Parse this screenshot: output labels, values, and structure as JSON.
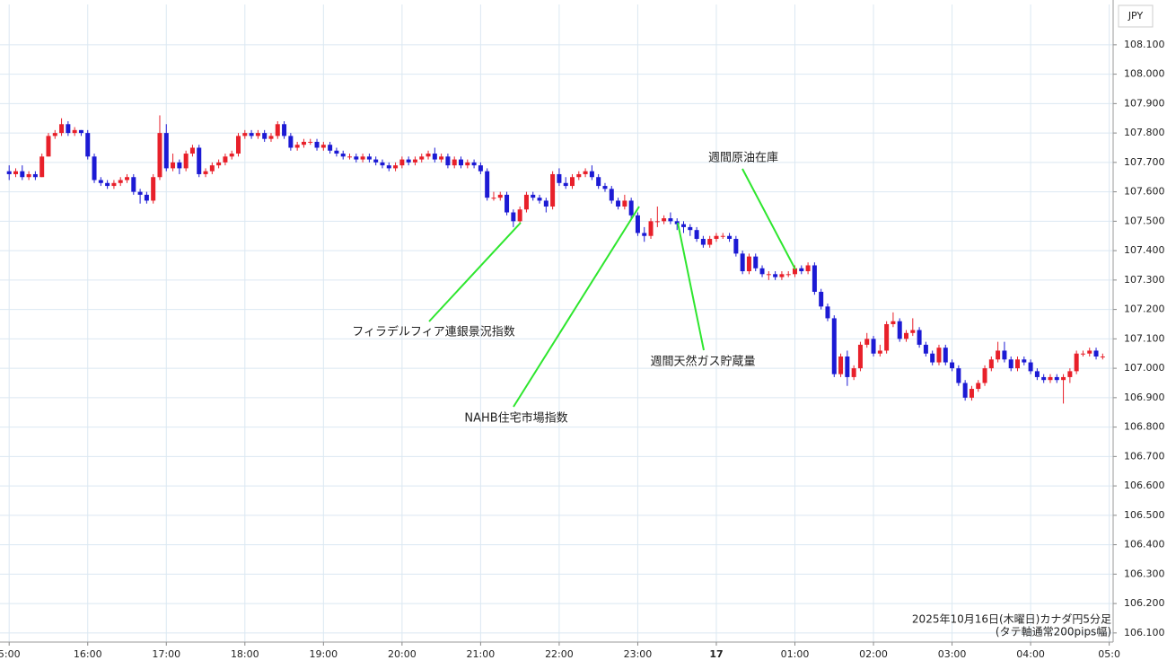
{
  "chart_data": {
    "type": "candlestick",
    "currency": "JPY",
    "note": [
      "2025年10月16日(木曜日)カナダ円5分足",
      "(タテ軸通常200pips幅)"
    ],
    "annotations": [
      "フィラデルフィア連銀景況指数",
      "NAHB住宅市場指数",
      "週間天然ガス貯蔵量",
      "週間原油在庫"
    ],
    "up_color": "#e8202a",
    "down_color": "#1c1ad4",
    "grid": true,
    "xlim": [
      -7,
      843
    ],
    "xticks": [
      {
        "value": 0,
        "label": "5:00"
      },
      {
        "value": 60,
        "label": "16:00"
      },
      {
        "value": 120,
        "label": "17:00"
      },
      {
        "value": 180,
        "label": "18:00"
      },
      {
        "value": 240,
        "label": "19:00"
      },
      {
        "value": 300,
        "label": "20:00"
      },
      {
        "value": 360,
        "label": "21:00"
      },
      {
        "value": 420,
        "label": "22:00"
      },
      {
        "value": 480,
        "label": "23:00"
      },
      {
        "value": 540,
        "label": "17"
      },
      {
        "value": 600,
        "label": "01:00"
      },
      {
        "value": 660,
        "label": "02:00"
      },
      {
        "value": 720,
        "label": "03:00"
      },
      {
        "value": 780,
        "label": "04:00"
      },
      {
        "value": 840,
        "label": "05:0"
      }
    ],
    "ylim": [
      106.069,
      108.237
    ],
    "yticks": [
      {
        "value": 106.1,
        "label": "106.100"
      },
      {
        "value": 106.2,
        "label": "106.200"
      },
      {
        "value": 106.3,
        "label": "106.300"
      },
      {
        "value": 106.4,
        "label": "106.400"
      },
      {
        "value": 106.5,
        "label": "106.500"
      },
      {
        "value": 106.6,
        "label": "106.600"
      },
      {
        "value": 106.7,
        "label": "106.700"
      },
      {
        "value": 106.8,
        "label": "106.800"
      },
      {
        "value": 106.9,
        "label": "106.900"
      },
      {
        "value": 107.0,
        "label": "107.000"
      },
      {
        "value": 107.1,
        "label": "107.100"
      },
      {
        "value": 107.2,
        "label": "107.200"
      },
      {
        "value": 107.3,
        "label": "107.300"
      },
      {
        "value": 107.4,
        "label": "107.400"
      },
      {
        "value": 107.5,
        "label": "107.500"
      },
      {
        "value": 107.6,
        "label": "107.600"
      },
      {
        "value": 107.7,
        "label": "107.700"
      },
      {
        "value": 107.8,
        "label": "107.800"
      },
      {
        "value": 107.9,
        "label": "107.900"
      },
      {
        "value": 108.0,
        "label": "108.000"
      },
      {
        "value": 108.1,
        "label": "108.100"
      }
    ],
    "x": [
      0,
      5,
      10,
      15,
      20,
      25,
      30,
      35,
      40,
      45,
      50,
      55,
      60,
      65,
      70,
      75,
      80,
      85,
      90,
      95,
      100,
      105,
      110,
      115,
      120,
      125,
      130,
      135,
      140,
      145,
      150,
      155,
      160,
      165,
      170,
      175,
      180,
      185,
      190,
      195,
      200,
      205,
      210,
      215,
      220,
      225,
      230,
      235,
      240,
      245,
      250,
      255,
      260,
      265,
      270,
      275,
      280,
      285,
      290,
      295,
      300,
      305,
      310,
      315,
      320,
      325,
      330,
      335,
      340,
      345,
      350,
      355,
      360,
      365,
      370,
      375,
      380,
      385,
      390,
      395,
      400,
      405,
      410,
      415,
      420,
      425,
      430,
      435,
      440,
      445,
      450,
      455,
      460,
      465,
      470,
      475,
      480,
      485,
      490,
      495,
      500,
      505,
      510,
      515,
      520,
      525,
      530,
      535,
      540,
      545,
      550,
      555,
      560,
      565,
      570,
      575,
      580,
      585,
      590,
      595,
      600,
      605,
      610,
      615,
      620,
      625,
      630,
      635,
      640,
      645,
      650,
      655,
      660,
      665,
      670,
      675,
      680,
      685,
      690,
      695,
      700,
      705,
      710,
      715,
      720,
      725,
      730,
      735,
      740,
      745,
      750,
      755,
      760,
      765,
      770,
      775,
      780,
      785,
      790,
      795,
      800,
      805,
      810,
      815,
      820,
      825,
      830,
      835
    ],
    "open": [
      107.67,
      107.66,
      107.67,
      107.65,
      107.66,
      107.65,
      107.72,
      107.79,
      107.8,
      107.83,
      107.8,
      107.81,
      107.8,
      107.72,
      107.64,
      107.63,
      107.62,
      107.63,
      107.64,
      107.65,
      107.6,
      107.59,
      107.57,
      107.65,
      107.8,
      107.68,
      107.7,
      107.68,
      107.73,
      107.75,
      107.66,
      107.67,
      107.69,
      107.7,
      107.72,
      107.73,
      107.79,
      107.8,
      107.79,
      107.8,
      107.78,
      107.79,
      107.83,
      107.79,
      107.75,
      107.76,
      107.77,
      107.77,
      107.75,
      107.76,
      107.74,
      107.73,
      107.72,
      107.72,
      107.71,
      107.72,
      107.71,
      107.7,
      107.69,
      107.68,
      107.69,
      107.71,
      107.7,
      107.71,
      107.72,
      107.73,
      107.71,
      107.72,
      107.69,
      107.71,
      107.69,
      107.7,
      107.69,
      107.67,
      107.58,
      107.58,
      107.59,
      107.53,
      107.5,
      107.54,
      107.59,
      107.58,
      107.57,
      107.55,
      107.66,
      107.63,
      107.62,
      107.65,
      107.66,
      107.67,
      107.65,
      107.62,
      107.61,
      107.57,
      107.55,
      107.57,
      107.52,
      107.46,
      107.45,
      107.5,
      107.5,
      107.51,
      107.5,
      107.49,
      107.48,
      107.47,
      107.44,
      107.42,
      107.44,
      107.45,
      107.45,
      107.44,
      107.39,
      107.33,
      107.38,
      107.34,
      107.32,
      107.32,
      107.31,
      107.32,
      107.32,
      107.34,
      107.33,
      107.35,
      107.26,
      107.21,
      107.17,
      106.98,
      107.04,
      106.97,
      107.0,
      107.08,
      107.1,
      107.05,
      107.06,
      107.15,
      107.16,
      107.1,
      107.12,
      107.13,
      107.08,
      107.05,
      107.02,
      107.07,
      107.02,
      107.0,
      106.95,
      106.9,
      106.93,
      106.95,
      107.0,
      107.03,
      107.06,
      107.03,
      107.0,
      107.03,
      107.02,
      106.99,
      106.97,
      106.96,
      106.97,
      106.96,
      106.97,
      106.99,
      107.05,
      107.05,
      107.06,
      107.04
    ],
    "high": [
      107.69,
      107.68,
      107.69,
      107.67,
      107.67,
      107.73,
      107.8,
      107.81,
      107.85,
      107.84,
      107.82,
      107.81,
      107.81,
      107.73,
      107.65,
      107.64,
      107.64,
      107.65,
      107.66,
      107.66,
      107.61,
      107.6,
      107.66,
      107.86,
      107.83,
      107.73,
      107.71,
      107.74,
      107.76,
      107.76,
      107.68,
      107.7,
      107.71,
      107.73,
      107.74,
      107.8,
      107.81,
      107.81,
      107.81,
      107.81,
      107.8,
      107.84,
      107.84,
      107.8,
      107.77,
      107.78,
      107.78,
      107.78,
      107.77,
      107.77,
      107.75,
      107.74,
      107.73,
      107.73,
      107.73,
      107.73,
      107.72,
      107.71,
      107.7,
      107.7,
      107.72,
      107.72,
      107.72,
      107.73,
      107.74,
      107.75,
      107.73,
      107.73,
      107.72,
      107.72,
      107.71,
      107.71,
      107.7,
      107.68,
      107.6,
      107.6,
      107.6,
      107.54,
      107.55,
      107.6,
      107.6,
      107.59,
      107.58,
      107.67,
      107.68,
      107.65,
      107.66,
      107.67,
      107.68,
      107.69,
      107.66,
      107.63,
      107.62,
      107.58,
      107.59,
      107.58,
      107.53,
      107.48,
      107.51,
      107.55,
      107.52,
      107.53,
      107.51,
      107.5,
      107.49,
      107.48,
      107.45,
      107.45,
      107.46,
      107.46,
      107.46,
      107.45,
      107.4,
      107.39,
      107.39,
      107.35,
      107.33,
      107.33,
      107.33,
      107.33,
      107.35,
      107.35,
      107.36,
      107.36,
      107.27,
      107.22,
      107.18,
      107.05,
      107.06,
      107.01,
      107.09,
      107.12,
      107.11,
      107.08,
      107.16,
      107.19,
      107.17,
      107.13,
      107.17,
      107.14,
      107.09,
      107.06,
      107.08,
      107.08,
      107.03,
      107.01,
      106.96,
      106.94,
      106.96,
      107.01,
      107.04,
      107.09,
      107.09,
      107.04,
      107.04,
      107.04,
      107.03,
      107.0,
      106.98,
      106.98,
      106.98,
      106.98,
      107.0,
      107.06,
      107.06,
      107.07,
      107.07,
      107.05
    ],
    "low": [
      107.64,
      107.65,
      107.64,
      107.64,
      107.64,
      107.65,
      107.72,
      107.78,
      107.79,
      107.79,
      107.79,
      107.79,
      107.71,
      107.63,
      107.62,
      107.61,
      107.61,
      107.62,
      107.63,
      107.59,
      107.56,
      107.56,
      107.56,
      107.64,
      107.67,
      107.67,
      107.66,
      107.67,
      107.72,
      107.65,
      107.65,
      107.66,
      107.68,
      107.69,
      107.71,
      107.72,
      107.78,
      107.78,
      107.78,
      107.77,
      107.77,
      107.78,
      107.78,
      107.74,
      107.74,
      107.75,
      107.76,
      107.74,
      107.74,
      107.73,
      107.72,
      107.71,
      107.71,
      107.7,
      107.7,
      107.7,
      107.69,
      107.68,
      107.67,
      107.67,
      107.68,
      107.69,
      107.69,
      107.7,
      107.71,
      107.7,
      107.7,
      107.68,
      107.68,
      107.68,
      107.68,
      107.68,
      107.66,
      107.57,
      107.57,
      107.57,
      107.52,
      107.48,
      107.49,
      107.53,
      107.57,
      107.56,
      107.53,
      107.54,
      107.62,
      107.61,
      107.61,
      107.64,
      107.65,
      107.64,
      107.61,
      107.6,
      107.56,
      107.54,
      107.54,
      107.51,
      107.45,
      107.43,
      107.44,
      107.48,
      107.49,
      107.49,
      107.47,
      107.46,
      107.45,
      107.43,
      107.41,
      107.41,
      107.43,
      107.44,
      107.43,
      107.38,
      107.32,
      107.32,
      107.33,
      107.31,
      107.3,
      107.3,
      107.3,
      107.31,
      107.31,
      107.32,
      107.32,
      107.25,
      107.2,
      107.16,
      106.97,
      106.97,
      106.94,
      106.96,
      106.99,
      107.07,
      107.04,
      107.04,
      107.05,
      107.14,
      107.09,
      107.09,
      107.11,
      107.07,
      107.04,
      107.01,
      107.01,
      107.01,
      106.99,
      106.94,
      106.89,
      106.89,
      106.92,
      106.94,
      106.99,
      107.02,
      107.02,
      106.99,
      106.99,
      107.01,
      106.98,
      106.96,
      106.95,
      106.95,
      106.95,
      106.88,
      106.95,
      106.98,
      107.04,
      107.04,
      107.03,
      107.03
    ],
    "close": [
      107.66,
      107.67,
      107.65,
      107.66,
      107.65,
      107.72,
      107.79,
      107.8,
      107.83,
      107.8,
      107.81,
      107.8,
      107.72,
      107.64,
      107.63,
      107.62,
      107.63,
      107.64,
      107.65,
      107.6,
      107.59,
      107.57,
      107.65,
      107.8,
      107.68,
      107.7,
      107.68,
      107.73,
      107.75,
      107.66,
      107.67,
      107.69,
      107.7,
      107.72,
      107.73,
      107.79,
      107.8,
      107.79,
      107.8,
      107.78,
      107.79,
      107.83,
      107.79,
      107.75,
      107.76,
      107.77,
      107.77,
      107.75,
      107.76,
      107.74,
      107.73,
      107.72,
      107.72,
      107.71,
      107.72,
      107.71,
      107.7,
      107.69,
      107.68,
      107.69,
      107.71,
      107.7,
      107.71,
      107.72,
      107.73,
      107.71,
      107.72,
      107.69,
      107.71,
      107.69,
      107.7,
      107.69,
      107.67,
      107.58,
      107.58,
      107.59,
      107.53,
      107.5,
      107.54,
      107.59,
      107.58,
      107.57,
      107.55,
      107.66,
      107.63,
      107.62,
      107.65,
      107.66,
      107.67,
      107.65,
      107.62,
      107.61,
      107.57,
      107.55,
      107.57,
      107.52,
      107.46,
      107.45,
      107.5,
      107.5,
      107.51,
      107.5,
      107.49,
      107.48,
      107.47,
      107.44,
      107.42,
      107.44,
      107.45,
      107.45,
      107.44,
      107.39,
      107.33,
      107.38,
      107.34,
      107.32,
      107.32,
      107.31,
      107.32,
      107.32,
      107.34,
      107.33,
      107.35,
      107.26,
      107.21,
      107.17,
      106.98,
      107.04,
      106.97,
      107.0,
      107.08,
      107.1,
      107.05,
      107.06,
      107.15,
      107.16,
      107.1,
      107.12,
      107.13,
      107.08,
      107.05,
      107.02,
      107.07,
      107.02,
      107.0,
      106.95,
      106.9,
      106.93,
      106.95,
      107.0,
      107.03,
      107.06,
      107.03,
      107.0,
      107.03,
      107.02,
      106.99,
      106.97,
      106.96,
      106.97,
      106.96,
      106.97,
      106.99,
      107.05,
      107.05,
      107.06,
      107.04,
      107.04
    ]
  }
}
